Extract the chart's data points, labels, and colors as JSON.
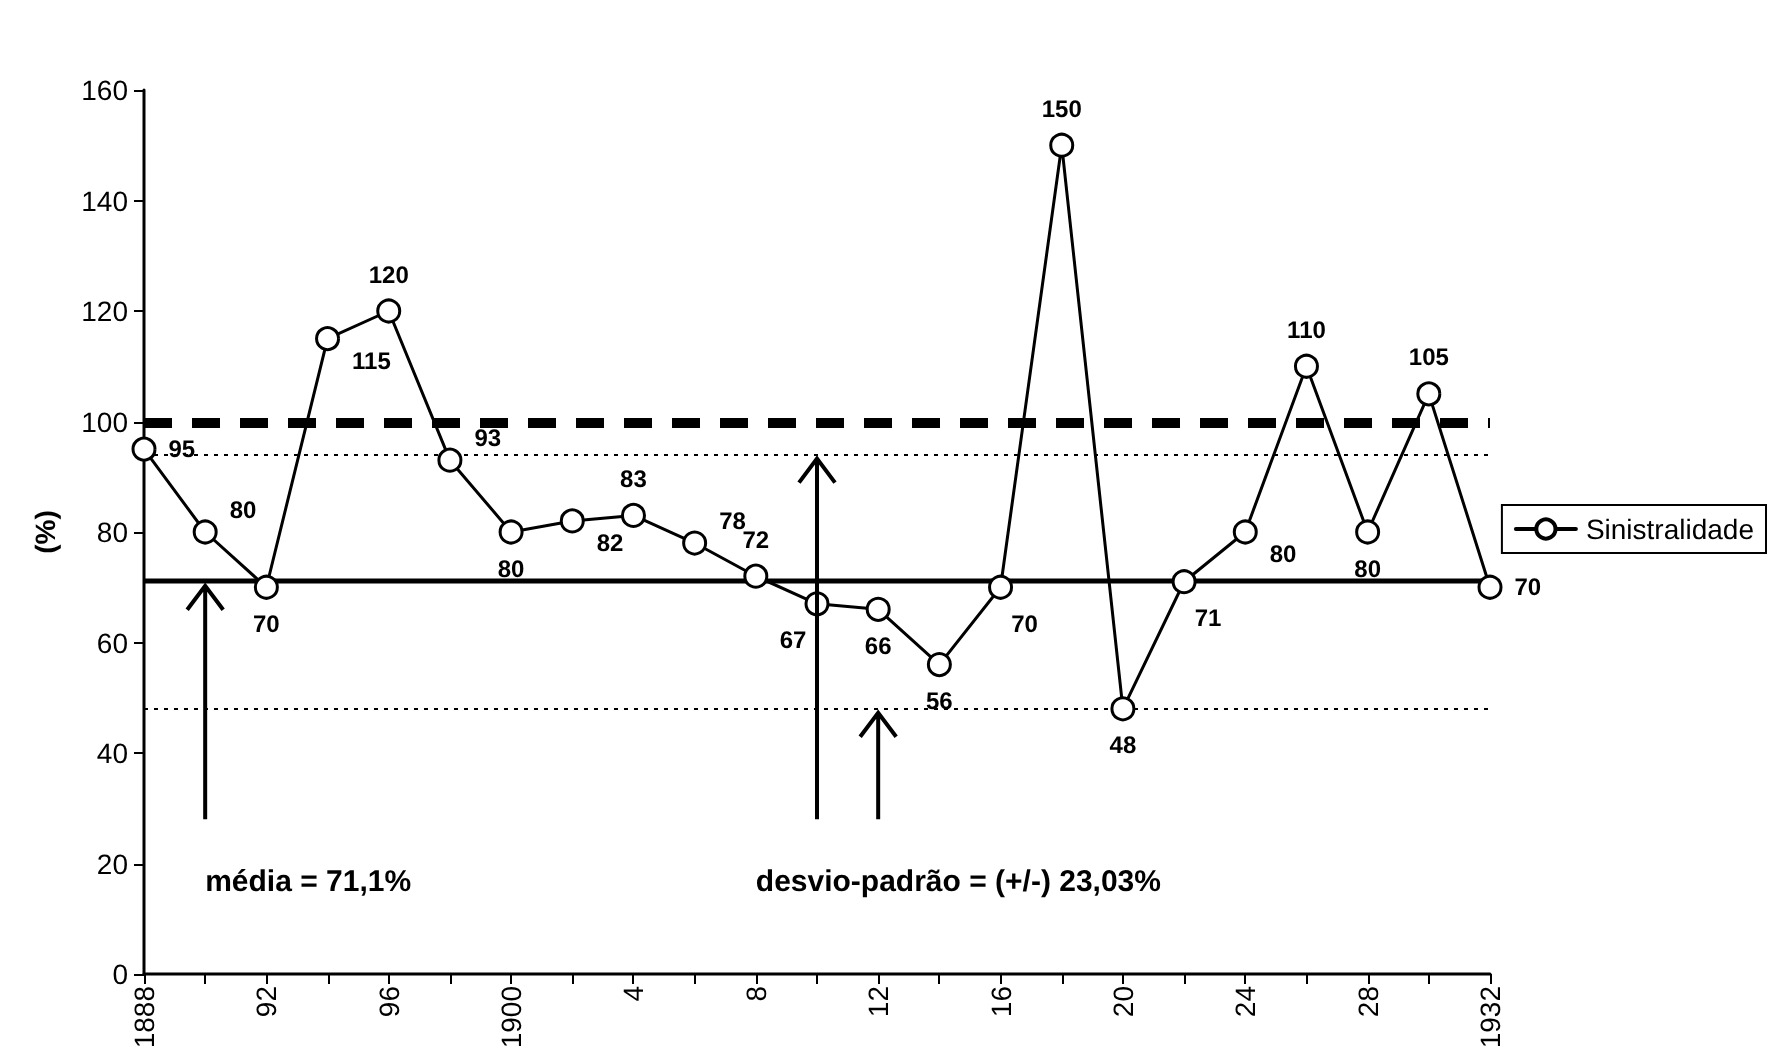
{
  "chart_data": {
    "type": "line",
    "ylabel": "(%)",
    "categories": [
      "1888",
      null,
      "92",
      null,
      "96",
      null,
      "1900",
      null,
      "4",
      null,
      "8",
      null,
      "12",
      null,
      "16",
      null,
      "20",
      null,
      "24",
      null,
      "28",
      null,
      "1932"
    ],
    "series": [
      {
        "name": "Sinistralidade",
        "color": "#000000",
        "values": [
          95,
          80,
          70,
          115,
          120,
          93,
          80,
          82,
          83,
          78,
          72,
          67,
          66,
          56,
          70,
          150,
          48,
          71,
          80,
          110,
          80,
          105,
          70
        ]
      }
    ],
    "ylim": [
      0,
      160
    ],
    "yticks": [
      0,
      20,
      40,
      60,
      80,
      100,
      120,
      140,
      160
    ],
    "ref_lines": [
      {
        "axis": "y",
        "value": 100,
        "line_style": "dashed",
        "color": "#000000"
      },
      {
        "axis": "y",
        "value": 71.1,
        "line_style": "solid",
        "color": "#000000"
      },
      {
        "axis": "y",
        "value": 94.13,
        "line_style": "dotted",
        "color": "#000000"
      },
      {
        "axis": "y",
        "value": 48.07,
        "line_style": "dotted",
        "color": "#000000"
      }
    ],
    "annotations": [
      "média = 71,1%",
      "desvio-padrão = (+/-) 23,03%"
    ],
    "data_labels": true,
    "marker": "circle",
    "line_style": "solid",
    "grid": false,
    "legend": "right"
  }
}
